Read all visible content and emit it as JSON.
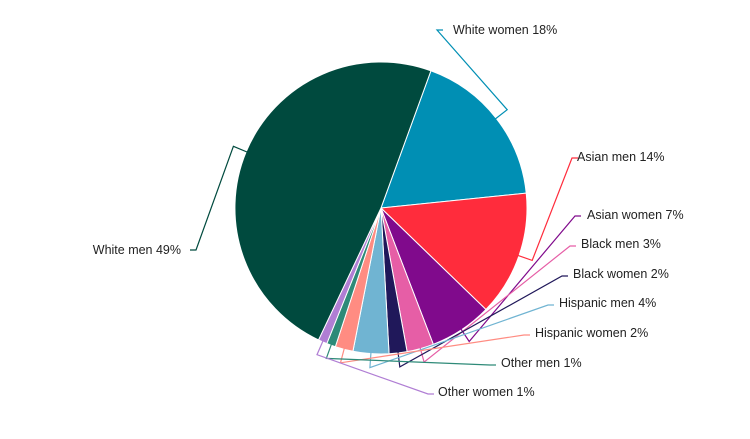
{
  "chart_data": {
    "type": "pie",
    "title": "",
    "slices": [
      {
        "label": "White women 18%",
        "value": 18,
        "color": "#008fb4"
      },
      {
        "label": "Asian men 14%",
        "value": 14,
        "color": "#ff2c3c"
      },
      {
        "label": "Asian women 7%",
        "value": 7,
        "color": "#800a8c"
      },
      {
        "label": "Black men 3%",
        "value": 3,
        "color": "#e65ea6"
      },
      {
        "label": "Black women 2%",
        "value": 2,
        "color": "#20185a"
      },
      {
        "label": "Hispanic men 4%",
        "value": 4,
        "color": "#70b4d2"
      },
      {
        "label": "Hispanic women 2%",
        "value": 2,
        "color": "#ff8c82"
      },
      {
        "label": "Other men 1%",
        "value": 1,
        "color": "#2e8a78"
      },
      {
        "label": "Other women 1%",
        "value": 1,
        "color": "#b07ed4"
      },
      {
        "label": "White men 49%",
        "value": 49,
        "color": "#004a3e"
      }
    ]
  }
}
